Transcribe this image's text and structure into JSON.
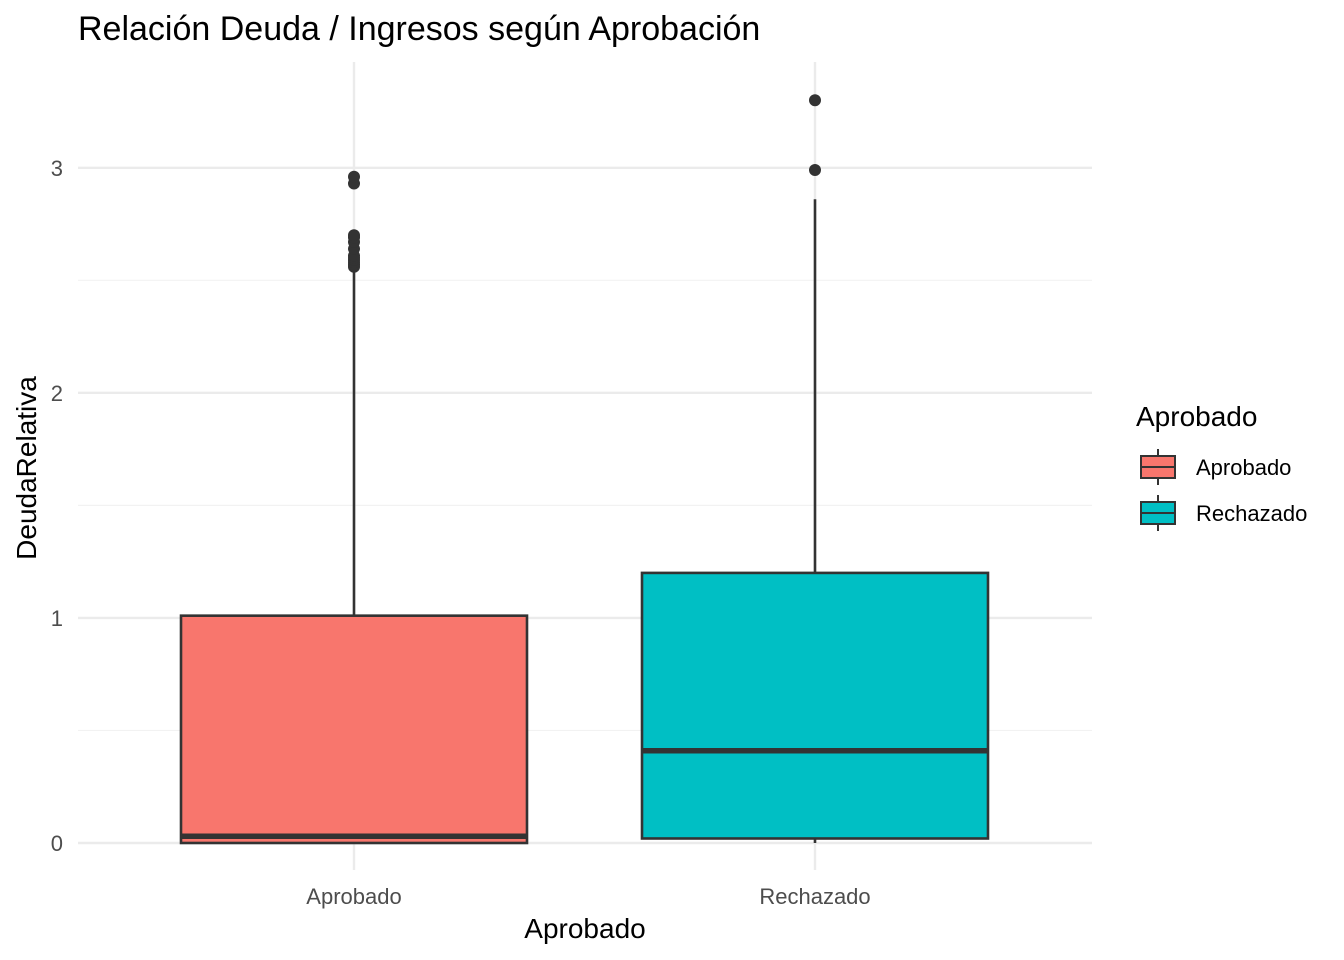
{
  "chart_data": {
    "type": "boxplot",
    "title": "Relación Deuda / Ingresos según Aprobación",
    "xlabel": "Aprobado",
    "ylabel": "DeudaRelativa",
    "ylim": [
      -0.12,
      3.47
    ],
    "yticks": [
      0,
      1,
      2,
      3
    ],
    "grid": true,
    "legend": {
      "title": "Aprobado",
      "placement": "right",
      "entries": [
        "Aprobado",
        "Rechazado"
      ]
    },
    "categories": [
      "Aprobado",
      "Rechazado"
    ],
    "series": [
      {
        "category": "Aprobado",
        "color": "#F8766D",
        "min": 0.0,
        "q1": 0.0,
        "median": 0.03,
        "q3": 1.01,
        "max": 2.55,
        "outliers": [
          2.56,
          2.57,
          2.58,
          2.59,
          2.6,
          2.61,
          2.64,
          2.67,
          2.69,
          2.7,
          2.93,
          2.96
        ]
      },
      {
        "category": "Rechazado",
        "color": "#00BFC4",
        "min": 0.0,
        "q1": 0.02,
        "median": 0.41,
        "q3": 1.2,
        "max": 2.86,
        "outliers": [
          2.99,
          3.3
        ]
      }
    ]
  }
}
